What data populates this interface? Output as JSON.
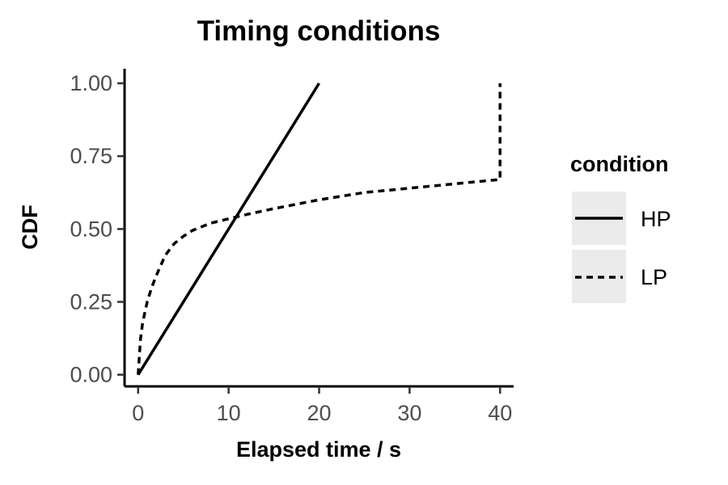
{
  "chart_data": {
    "type": "line",
    "title": "Timing conditions",
    "xlabel": "Elapsed time / s",
    "ylabel": "CDF",
    "xlim": [
      -1.5,
      41.5
    ],
    "ylim": [
      -0.04,
      1.05
    ],
    "x_ticks": [
      0,
      10,
      20,
      30,
      40
    ],
    "x_tick_labels": [
      "0",
      "10",
      "20",
      "30",
      "40"
    ],
    "y_ticks": [
      0,
      0.25,
      0.5,
      0.75,
      1.0
    ],
    "y_tick_labels": [
      "0.00",
      "0.25",
      "0.50",
      "0.75",
      "1.00"
    ],
    "grid": false,
    "legend": {
      "title": "condition",
      "position": "right",
      "entries": [
        {
          "label": "HP",
          "linetype": "solid"
        },
        {
          "label": "LP",
          "linetype": "dashed"
        }
      ]
    },
    "series": [
      {
        "name": "HP",
        "linetype": "solid",
        "color": "#000000",
        "x": [
          0,
          20
        ],
        "y": [
          0,
          1.0
        ]
      },
      {
        "name": "LP",
        "linetype": "dashed",
        "color": "#000000",
        "x": [
          0,
          0.25,
          0.5,
          1,
          1.5,
          2,
          3,
          4,
          5,
          6,
          8,
          10,
          12,
          15,
          20,
          25,
          30,
          35,
          40,
          40
        ],
        "y": [
          0,
          0.12,
          0.18,
          0.25,
          0.3,
          0.34,
          0.41,
          0.45,
          0.475,
          0.495,
          0.52,
          0.535,
          0.55,
          0.57,
          0.6,
          0.625,
          0.64,
          0.655,
          0.67,
          1.0
        ]
      }
    ]
  }
}
